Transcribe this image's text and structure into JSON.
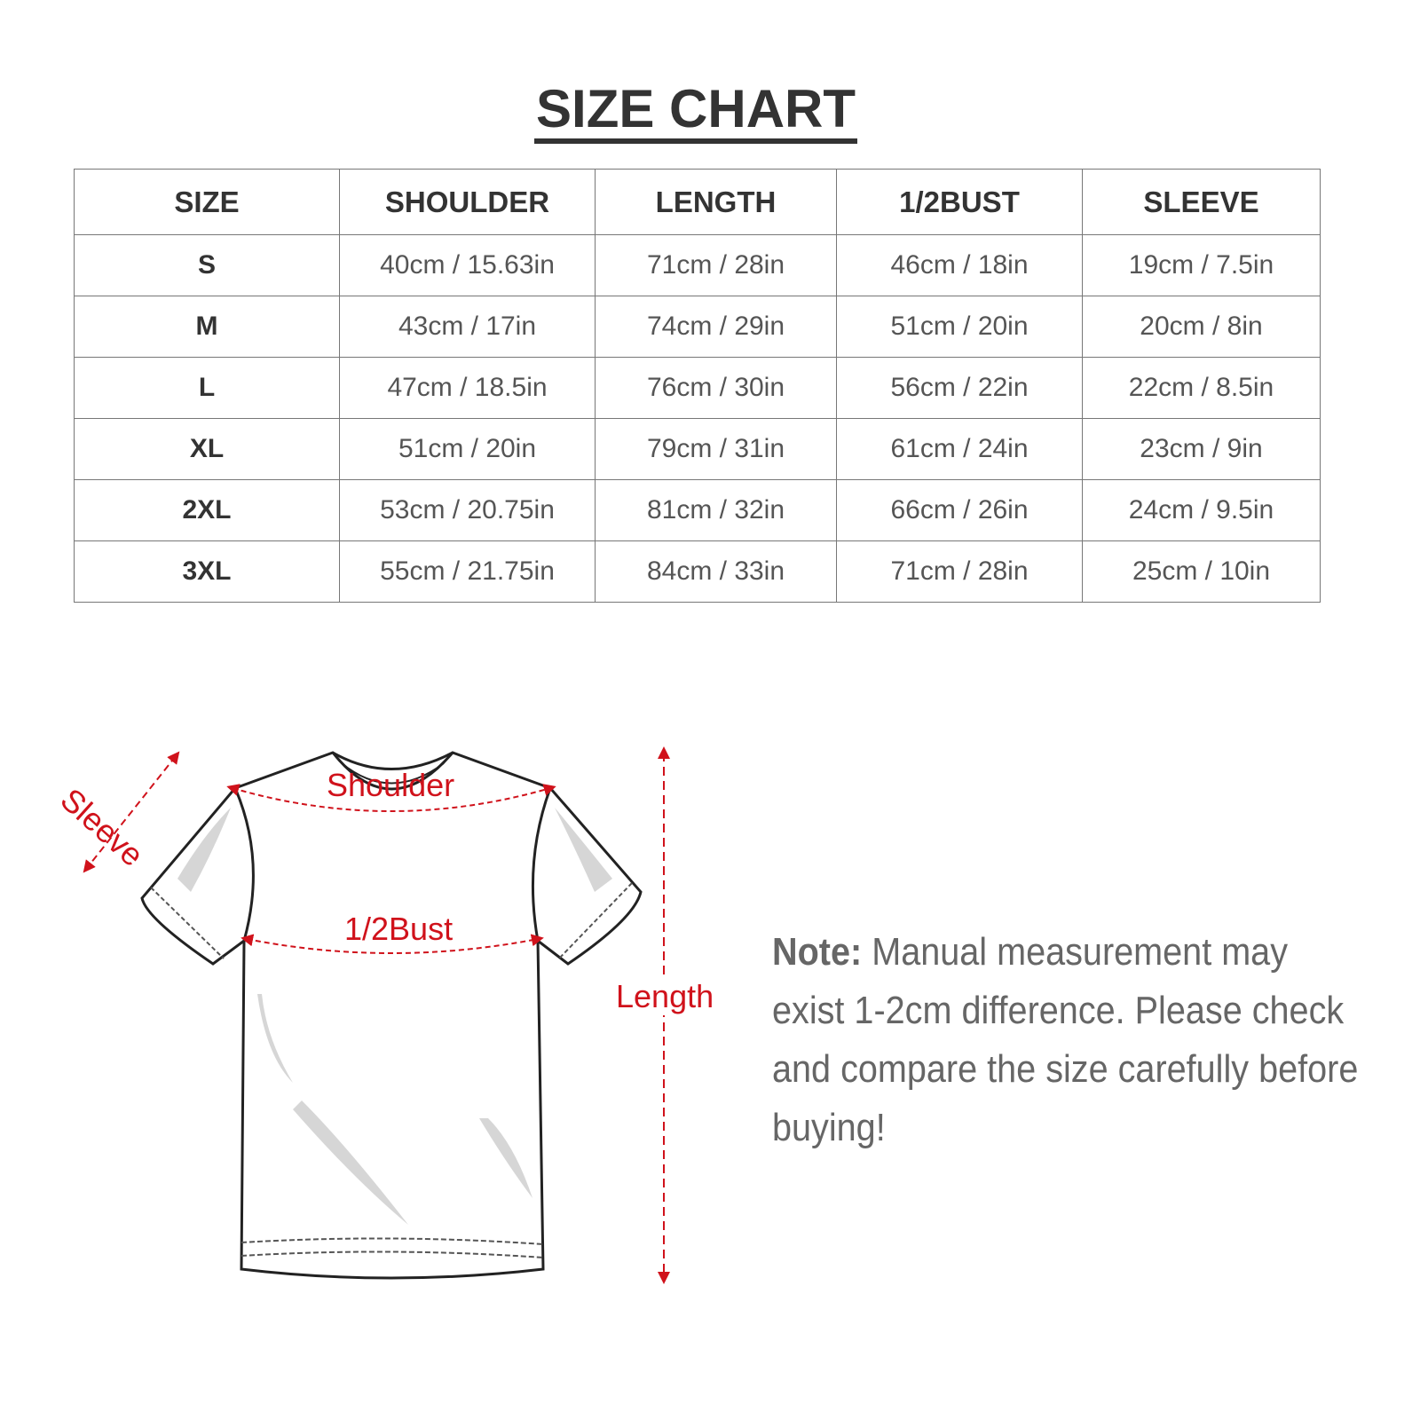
{
  "title": "SIZE CHART",
  "table": {
    "headers": [
      "SIZE",
      "SHOULDER",
      "LENGTH",
      "1/2BUST",
      "SLEEVE"
    ],
    "rows": [
      [
        "S",
        "40cm / 15.63in",
        "71cm / 28in",
        "46cm / 18in",
        "19cm / 7.5in"
      ],
      [
        "M",
        "43cm / 17in",
        "74cm / 29in",
        "51cm / 20in",
        "20cm / 8in"
      ],
      [
        "L",
        "47cm / 18.5in",
        "76cm / 30in",
        "56cm / 22in",
        "22cm / 8.5in"
      ],
      [
        "XL",
        "51cm / 20in",
        "79cm / 31in",
        "61cm / 24in",
        "23cm / 9in"
      ],
      [
        "2XL",
        "53cm / 20.75in",
        "81cm / 32in",
        "66cm / 26in",
        "24cm / 9.5in"
      ],
      [
        "3XL",
        "55cm / 21.75in",
        "84cm / 33in",
        "71cm / 28in",
        "25cm / 10in"
      ]
    ]
  },
  "diagram": {
    "labels": {
      "sleeve": "Sleeve",
      "shoulder": "Shoulder",
      "bust": "1/2Bust",
      "length": "Length"
    },
    "measure_color": "#d0121b"
  },
  "note": {
    "label": "Note:",
    "text": "Manual measurement may exist 1-2cm difference. Please check and compare the size carefully before buying!"
  }
}
